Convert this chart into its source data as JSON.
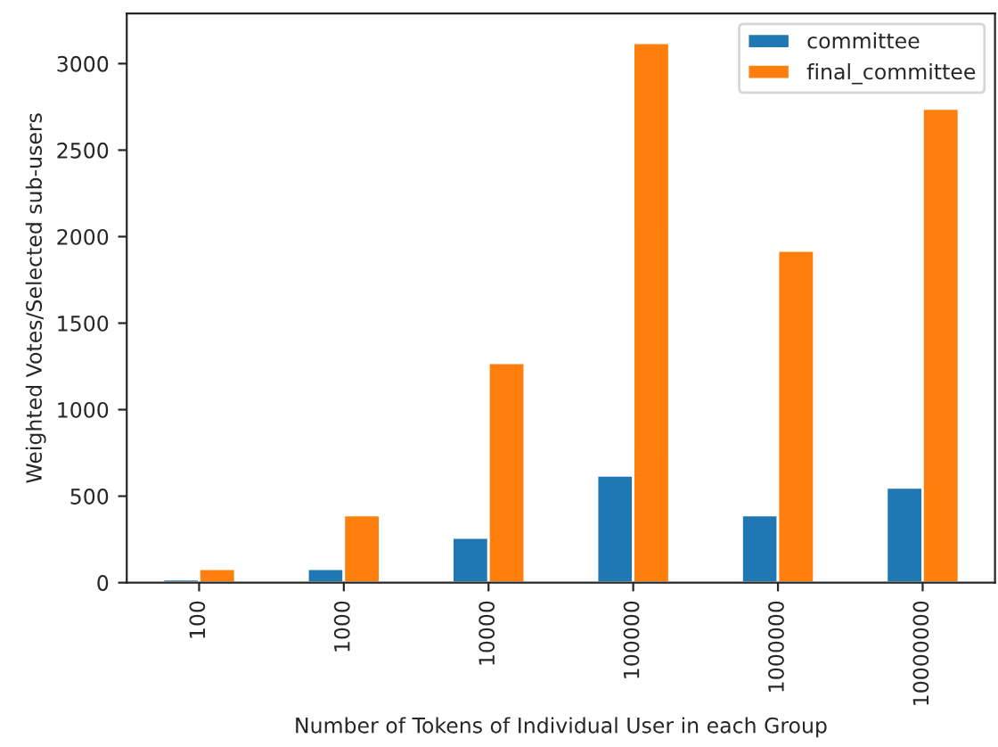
{
  "chart_data": {
    "type": "bar",
    "xlabel": "Number of Tokens of Individual User in each Group",
    "ylabel": "Weighted Votes/Selected sub-users",
    "categories": [
      "100",
      "1000",
      "10000",
      "100000",
      "1000000",
      "10000000"
    ],
    "series": [
      {
        "name": "committee",
        "color": "#1f77b4",
        "values": [
          20,
          80,
          260,
          620,
          390,
          550
        ]
      },
      {
        "name": "final_committee",
        "color": "#ff7f0e",
        "values": [
          80,
          390,
          1270,
          3120,
          1920,
          2740
        ]
      }
    ],
    "ylim": [
      0,
      3290
    ],
    "yticks": [
      0,
      500,
      1000,
      1500,
      2000,
      2500,
      3000
    ],
    "grid": false,
    "legend": "top right"
  }
}
